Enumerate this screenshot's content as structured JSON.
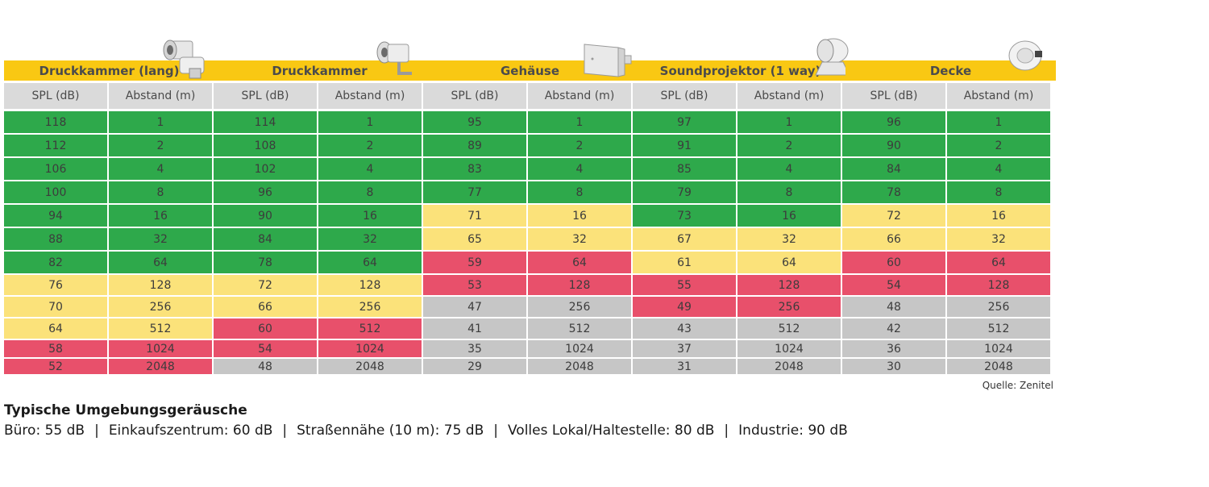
{
  "chart_data": {
    "type": "table",
    "groups": [
      {
        "name": "Druckkammer (lang)",
        "icon": "horn-speaker-long-icon"
      },
      {
        "name": "Druckkammer",
        "icon": "horn-speaker-icon"
      },
      {
        "name": "Gehäuse",
        "icon": "box-speaker-icon"
      },
      {
        "name": "Soundprojektor (1 way)",
        "icon": "sound-projector-icon"
      },
      {
        "name": "Decke",
        "icon": "ceiling-speaker-icon"
      }
    ],
    "columns": [
      "SPL (dB)",
      "Abstand (m)"
    ],
    "rows": [
      [
        "118",
        "1",
        "114",
        "1",
        "95",
        "1",
        "97",
        "1",
        "96",
        "1"
      ],
      [
        "112",
        "2",
        "108",
        "2",
        "89",
        "2",
        "91",
        "2",
        "90",
        "2"
      ],
      [
        "106",
        "4",
        "102",
        "4",
        "83",
        "4",
        "85",
        "4",
        "84",
        "4"
      ],
      [
        "100",
        "8",
        "96",
        "8",
        "77",
        "8",
        "79",
        "8",
        "78",
        "8"
      ],
      [
        "94",
        "16",
        "90",
        "16",
        "71",
        "16",
        "73",
        "16",
        "72",
        "16"
      ],
      [
        "88",
        "32",
        "84",
        "32",
        "65",
        "32",
        "67",
        "32",
        "66",
        "32"
      ],
      [
        "82",
        "64",
        "78",
        "64",
        "59",
        "64",
        "61",
        "64",
        "60",
        "64"
      ],
      [
        "76",
        "128",
        "72",
        "128",
        "53",
        "128",
        "55",
        "128",
        "54",
        "128"
      ],
      [
        "70",
        "256",
        "66",
        "256",
        "47",
        "256",
        "49",
        "256",
        "48",
        "256"
      ],
      [
        "64",
        "512",
        "60",
        "512",
        "41",
        "512",
        "43",
        "512",
        "42",
        "512"
      ],
      [
        "58",
        "1024",
        "54",
        "1024",
        "35",
        "1024",
        "37",
        "1024",
        "36",
        "1024"
      ],
      [
        "52",
        "2048",
        "48",
        "2048",
        "29",
        "2048",
        "31",
        "2048",
        "30",
        "2048"
      ]
    ],
    "row_status": [
      [
        "green",
        "green",
        "green",
        "green",
        "green"
      ],
      [
        "green",
        "green",
        "green",
        "green",
        "green"
      ],
      [
        "green",
        "green",
        "green",
        "green",
        "green"
      ],
      [
        "green",
        "green",
        "green",
        "green",
        "green"
      ],
      [
        "green",
        "green",
        "yellow",
        "green",
        "yellow"
      ],
      [
        "green",
        "green",
        "yellow",
        "yellow",
        "yellow"
      ],
      [
        "green",
        "green",
        "red",
        "yellow",
        "red"
      ],
      [
        "yellow",
        "yellow",
        "red",
        "red",
        "red"
      ],
      [
        "yellow",
        "yellow",
        "gray",
        "red",
        "gray"
      ],
      [
        "yellow",
        "red",
        "gray",
        "gray",
        "gray"
      ],
      [
        "red",
        "red",
        "gray",
        "gray",
        "gray"
      ],
      [
        "red",
        "gray",
        "gray",
        "gray",
        "gray"
      ]
    ],
    "colors": {
      "green": "#2ea94b",
      "yellow": "#fbe27a",
      "red": "#e8506b",
      "gray": "#c6c6c6",
      "header_band": "#f9c813",
      "column_header": "#dadada"
    }
  },
  "source": "Quelle: Zenitel",
  "noise": {
    "title": "Typische Umgebungsgeräusche",
    "items": [
      "Büro: 55 dB",
      "Einkaufszentrum: 60 dB",
      "Straßennähe (10 m): 75 dB",
      "Volles Lokal/Haltestelle: 80 dB",
      "Industrie: 90 dB"
    ],
    "separator": "|"
  }
}
